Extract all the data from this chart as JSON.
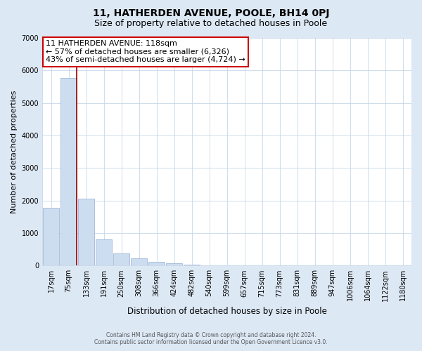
{
  "title": "11, HATHERDEN AVENUE, POOLE, BH14 0PJ",
  "subtitle": "Size of property relative to detached houses in Poole",
  "xlabel": "Distribution of detached houses by size in Poole",
  "ylabel": "Number of detached properties",
  "bar_labels": [
    "17sqm",
    "75sqm",
    "133sqm",
    "191sqm",
    "250sqm",
    "308sqm",
    "366sqm",
    "424sqm",
    "482sqm",
    "540sqm",
    "599sqm",
    "657sqm",
    "715sqm",
    "773sqm",
    "831sqm",
    "889sqm",
    "947sqm",
    "1006sqm",
    "1064sqm",
    "1122sqm",
    "1180sqm"
  ],
  "bar_values": [
    1780,
    5780,
    2060,
    800,
    370,
    230,
    120,
    70,
    30,
    15,
    5,
    2,
    0,
    0,
    0,
    0,
    0,
    0,
    0,
    0,
    0
  ],
  "bar_color": "#ccddf0",
  "bar_edge_color": "#a0b8d8",
  "property_line_color": "#990000",
  "ylim": [
    0,
    7000
  ],
  "annotation_line1": "11 HATHERDEN AVENUE: 118sqm",
  "annotation_line2": "← 57% of detached houses are smaller (6,326)",
  "annotation_line3": "43% of semi-detached houses are larger (4,724) →",
  "annotation_box_color": "#ffffff",
  "annotation_box_edge": "#cc0000",
  "footer_line1": "Contains HM Land Registry data © Crown copyright and database right 2024.",
  "footer_line2": "Contains public sector information licensed under the Open Government Licence v3.0.",
  "background_color": "#dde8f5",
  "plot_background_color": "#ffffff",
  "grid_color": "#c8d8e8",
  "title_fontsize": 10,
  "subtitle_fontsize": 9
}
